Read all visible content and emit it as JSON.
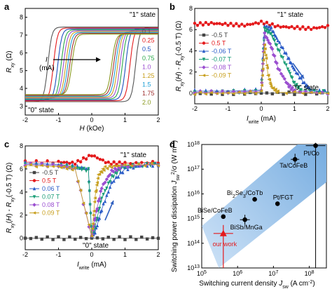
{
  "chart_data": [
    {
      "type": "line",
      "panel_label": "a",
      "xlabel": "H (kOe)",
      "ylabel": "Rxy (Ω)",
      "xlim": [
        -2,
        2
      ],
      "ylim": [
        2.5,
        8.5
      ],
      "xticks": [
        -2,
        -1,
        0,
        1,
        2
      ],
      "yticks": [
        3,
        4,
        5,
        6,
        7,
        8
      ],
      "legend_title": "I (mA)",
      "annotations": [
        "\"1\" state",
        "\"0\" state"
      ],
      "series": [
        {
          "name": "0.1",
          "color": "#555555",
          "Hc": 1.32,
          "high": 7.45,
          "low": 3.25
        },
        {
          "name": "0.25",
          "color": "#e41a1c",
          "Hc": 1.15,
          "high": 7.4,
          "low": 3.3
        },
        {
          "name": "0.5",
          "color": "#1f4fbf",
          "Hc": 1.02,
          "high": 7.35,
          "low": 3.35
        },
        {
          "name": "0.75",
          "color": "#2aa84a",
          "Hc": 0.92,
          "high": 7.3,
          "low": 3.4
        },
        {
          "name": "1.0",
          "color": "#9b4fd0",
          "Hc": 0.85,
          "high": 7.25,
          "low": 3.45
        },
        {
          "name": "1.25",
          "color": "#c8a020",
          "Hc": 0.78,
          "high": 7.2,
          "low": 3.5
        },
        {
          "name": "1.5",
          "color": "#1e9fd6",
          "Hc": 0.72,
          "high": 7.15,
          "low": 3.55
        },
        {
          "name": "1.75",
          "color": "#a03030",
          "Hc": 0.66,
          "high": 7.1,
          "low": 3.6
        },
        {
          "name": "2.0",
          "color": "#8a9a20",
          "Hc": 0.6,
          "high": 7.05,
          "low": 3.65
        }
      ]
    },
    {
      "type": "line",
      "panel_label": "b",
      "xlabel": "I_write (mA)",
      "ylabel": "Rxy(H) - Rxy(-0.5 T) (Ω)",
      "xlim": [
        -2,
        2
      ],
      "ylim": [
        -1,
        8
      ],
      "xticks": [
        -2,
        -1,
        0,
        1,
        2
      ],
      "yticks": [
        0,
        2,
        4,
        6,
        8
      ],
      "annotations": [
        "\"1\" state",
        "\"0\" state"
      ],
      "series": [
        {
          "name": "-0.5 T",
          "color": "#444444",
          "marker": "square",
          "x": [
            -2,
            -1,
            0,
            1,
            2
          ],
          "y": [
            0,
            0,
            0,
            0,
            0
          ]
        },
        {
          "name": "0.5 T",
          "color": "#e41a1c",
          "marker": "circle",
          "x": [
            -2,
            -1.5,
            -1,
            -0.5,
            0,
            0.5,
            1,
            1.5,
            2
          ],
          "y": [
            6.5,
            6.6,
            6.5,
            6.4,
            6.7,
            6.3,
            6.2,
            6.1,
            6.3
          ]
        },
        {
          "name": "-0.06 T",
          "color": "#2b5cc8",
          "marker": "triangle",
          "x": [
            -2,
            -1,
            0,
            0.1,
            0.3,
            0.5,
            0.8,
            1.0,
            1.3,
            1.5,
            2
          ],
          "y": [
            0.2,
            0.2,
            0.3,
            6.3,
            6.1,
            5.0,
            3.4,
            2.2,
            0.9,
            0.3,
            0.1
          ]
        },
        {
          "name": "-0.07 T",
          "color": "#1b9e77",
          "marker": "triangle-down",
          "x": [
            -2,
            -1,
            0,
            0.1,
            0.3,
            0.5,
            0.8,
            1.0,
            1.2,
            2
          ],
          "y": [
            0.1,
            0.1,
            0.2,
            6.0,
            5.6,
            4.2,
            2.3,
            0.9,
            0.3,
            0.1
          ]
        },
        {
          "name": "-0.08 T",
          "color": "#9b4fd0",
          "marker": "diamond",
          "x": [
            -2,
            -1,
            0,
            0.1,
            0.3,
            0.5,
            0.8,
            1.0,
            2
          ],
          "y": [
            0.1,
            0.1,
            0.2,
            5.6,
            4.4,
            2.4,
            0.8,
            0.2,
            0.0
          ]
        },
        {
          "name": "-0.09 T",
          "color": "#c8a020",
          "marker": "triangle-left",
          "x": [
            -2,
            -1,
            0,
            0.1,
            0.2,
            0.3,
            0.5,
            2
          ],
          "y": [
            0.0,
            0.0,
            0.1,
            4.6,
            1.8,
            0.6,
            0.1,
            0.0
          ]
        }
      ]
    },
    {
      "type": "line",
      "panel_label": "c",
      "xlabel": "I_write (mA)",
      "ylabel": "Rxy(H) - Rxy(-0.5 T) (Ω)",
      "xlim": [
        -2,
        2
      ],
      "ylim": [
        -1,
        8
      ],
      "xticks": [
        -2,
        -1,
        0,
        1,
        2
      ],
      "yticks": [
        0,
        2,
        4,
        6,
        8
      ],
      "annotations": [
        "\"1\" state",
        "\"0\" state"
      ],
      "series": [
        {
          "name": "-0.5 T",
          "color": "#444444",
          "marker": "square",
          "x": [
            -2,
            -1,
            0,
            1,
            2
          ],
          "y": [
            0,
            0,
            0,
            0,
            0
          ]
        },
        {
          "name": "0.5 T",
          "color": "#e41a1c",
          "marker": "circle",
          "x": [
            -2,
            -1,
            -0.5,
            0,
            0.5,
            1,
            2
          ],
          "y": [
            6.6,
            6.6,
            6.5,
            7.2,
            6.5,
            6.5,
            6.6
          ]
        },
        {
          "name": "0.06 T",
          "color": "#2b5cc8",
          "marker": "triangle",
          "x": [
            -2,
            -1,
            -0.5,
            -0.1,
            0,
            0.1,
            0.3,
            0.6,
            1.0,
            1.5,
            2
          ],
          "y": [
            6.5,
            6.4,
            6.2,
            6.0,
            0.2,
            0.5,
            2.5,
            4.8,
            6.0,
            6.3,
            6.4
          ]
        },
        {
          "name": "0.07 T",
          "color": "#1b9e77",
          "marker": "triangle-down",
          "x": [
            -2,
            -1,
            -0.5,
            -0.1,
            0,
            0.1,
            0.3,
            0.6,
            0.9,
            1.3,
            2
          ],
          "y": [
            6.4,
            6.3,
            6.1,
            5.9,
            0.1,
            1.0,
            3.5,
            5.3,
            6.1,
            6.3,
            6.4
          ]
        },
        {
          "name": "0.08 T",
          "color": "#9b4fd0",
          "marker": "diamond",
          "x": [
            -2,
            -1,
            -0.5,
            0,
            0.1,
            0.3,
            0.6,
            0.9,
            2
          ],
          "y": [
            6.4,
            6.3,
            6.0,
            0.1,
            1.8,
            4.4,
            5.8,
            6.2,
            6.4
          ]
        },
        {
          "name": "0.09 T",
          "color": "#c8a020",
          "marker": "triangle-left",
          "x": [
            -2,
            -1,
            -0.5,
            0,
            0.1,
            0.2,
            0.4,
            0.8,
            2
          ],
          "y": [
            6.3,
            6.2,
            6.0,
            0.2,
            3.6,
            5.5,
            6.1,
            6.3,
            6.4
          ]
        }
      ]
    },
    {
      "type": "scatter",
      "panel_label": "d",
      "xlabel": "Switching current density J_sw (A cm^-2)",
      "ylabel": "Switching power dissipation J_sw^2/σ (W m^-3)",
      "xscale": "log",
      "yscale": "log",
      "xlim": [
        100000,
        300000000
      ],
      "ylim": [
        10000000000000.0,
        1e+18
      ],
      "xticks": [
        "10^5",
        "10^6",
        "10^7",
        "10^8"
      ],
      "yticks": [
        "10^13",
        "10^14",
        "10^15",
        "10^16",
        "10^17",
        "10^18"
      ],
      "points": [
        {
          "label": "Pt/Co",
          "x": 150000000,
          "y": 9e+17,
          "color": "#000000"
        },
        {
          "label": "Ta/CoFeB",
          "x": 40000000,
          "y": 2.5e+17,
          "color": "#000000"
        },
        {
          "label": "Bi2Se3/CoTb",
          "x": 3000000,
          "y": 6000000000000000.0,
          "color": "#000000"
        },
        {
          "label": "Pt/FGT",
          "x": 13000000,
          "y": 4000000000000000.0,
          "color": "#000000"
        },
        {
          "label": "BiSe/CoFeB",
          "x": 400000,
          "y": 1200000000000000.0,
          "color": "#000000"
        },
        {
          "label": "BiSb/MnGa",
          "x": 1600000,
          "y": 900000000000000.0,
          "color": "#000000"
        },
        {
          "label": "our work",
          "x": 400000,
          "y": 250000000000000.0,
          "color": "#e41a1c"
        }
      ]
    }
  ],
  "text": {
    "a_label": "a",
    "b_label": "b",
    "c_label": "c",
    "d_label": "d",
    "state1": "\"1\" state",
    "state0": "\"0\" state",
    "legend_title_I": "I",
    "legend_title_mA": "(mA)",
    "a_xlabel": "H (kOe)",
    "a_ylabel": "R_xy (Ω)",
    "bc_xlabel": "I_write (mA)",
    "bc_ylabel": "R_xy(H) - R_xy(-0.5 T) (Ω)",
    "d_xlabel": "Switching current density J_sw (A cm⁻²)",
    "d_ylabel": "Switching power dissipation J_sw²/σ (W m⁻³)"
  }
}
